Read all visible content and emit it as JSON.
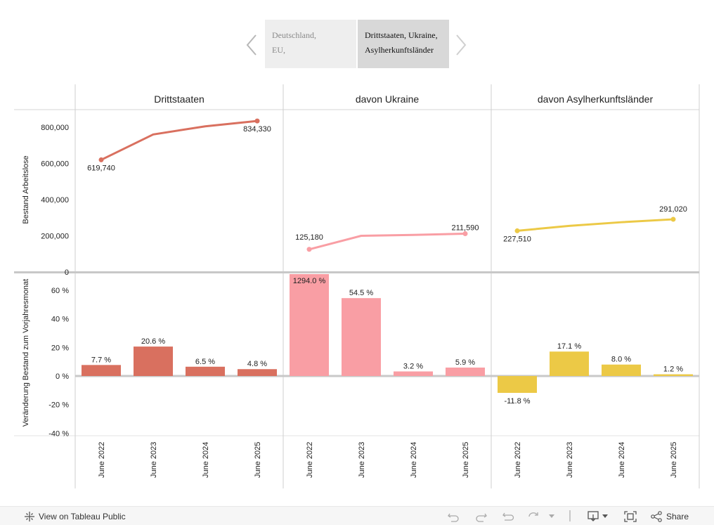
{
  "tabs": {
    "items": [
      {
        "line1": "Deutschland,",
        "line2": "EU,"
      },
      {
        "line1": "Drittstaaten, Ukraine,",
        "line2": "Asylherkunftsländer"
      }
    ]
  },
  "chart_data": {
    "type": "line+bar",
    "panels": [
      {
        "title": "Drittstaaten",
        "color": "#d9705f",
        "line_values": [
          619740,
          760000,
          805000,
          834330
        ],
        "line_labels": [
          "619,740",
          "",
          "",
          "834,330"
        ],
        "bar_values": [
          7.7,
          20.6,
          6.5,
          4.8
        ],
        "bar_labels": [
          "7.7 %",
          "20.6 %",
          "6.5 %",
          "4.8 %"
        ]
      },
      {
        "title": "davon Ukraine",
        "color": "#f99ea4",
        "line_values": [
          125180,
          200000,
          205000,
          211590
        ],
        "line_labels": [
          "125,180",
          "",
          "",
          "211,590"
        ],
        "bar_values": [
          1294.0,
          54.5,
          3.2,
          5.9
        ],
        "bar_labels": [
          "1294.0 %",
          "54.5 %",
          "3.2 %",
          "5.9 %"
        ]
      },
      {
        "title": "davon Asylherkunftsländer",
        "color": "#ecc946",
        "line_values": [
          227510,
          255000,
          275000,
          291020
        ],
        "line_labels": [
          "227,510",
          "",
          "",
          "291,020"
        ],
        "bar_values": [
          -11.8,
          17.1,
          8.0,
          1.2
        ],
        "bar_labels": [
          "-11.8 %",
          "17.1 %",
          "8.0 %",
          "1.2 %"
        ]
      }
    ],
    "categories": [
      "June 2022",
      "June 2023",
      "June 2024",
      "June 2025"
    ],
    "line_axis": {
      "label": "Bestand Arbeitslose",
      "ylim": [
        0,
        900000
      ],
      "ticks": [
        0,
        200000,
        400000,
        600000,
        800000
      ],
      "tick_labels": [
        "0",
        "200,000",
        "400,000",
        "600,000",
        "800,000"
      ]
    },
    "bar_axis": {
      "label": "Veränderung Bestand zum Vorjahresmonat",
      "ylim": [
        -40,
        70
      ],
      "ticks": [
        -40,
        -20,
        0,
        20,
        40,
        60
      ],
      "tick_labels": [
        "-40 %",
        "-20 %",
        "0 %",
        "20 %",
        "40 %",
        "60 %"
      ]
    }
  },
  "footer": {
    "view_label": "View on Tableau Public",
    "share_label": "Share"
  }
}
